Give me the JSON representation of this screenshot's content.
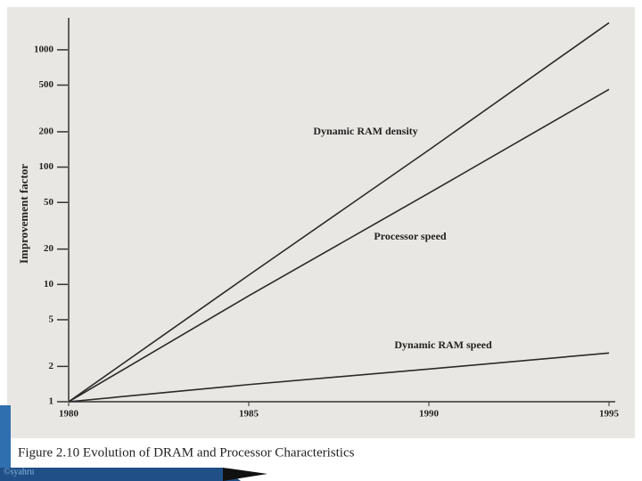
{
  "chart_data": {
    "type": "line",
    "ylabel": "Improvement factor",
    "caption": "Figure 2.10   Evolution of DRAM and Processor Characteristics",
    "footer": "©syahru",
    "x": [
      1980,
      1985,
      1990,
      1995
    ],
    "xlim": [
      1980,
      1995
    ],
    "xticks": [
      1980,
      1985,
      1990,
      1995
    ],
    "ylim": [
      1,
      2000
    ],
    "yticks": [
      1,
      2,
      5,
      10,
      20,
      50,
      100,
      200,
      500,
      1000
    ],
    "log_y": true,
    "grid": false,
    "series": [
      {
        "name": "Dynamic RAM density",
        "color": "#2a2a2a",
        "values": [
          1,
          12,
          140,
          1700
        ]
      },
      {
        "name": "Processor speed",
        "color": "#2a2a2a",
        "values": [
          1,
          8,
          60,
          460
        ]
      },
      {
        "name": "Dynamic RAM speed",
        "color": "#2a2a2a",
        "values": [
          1,
          1.4,
          1.9,
          2.6
        ]
      }
    ]
  }
}
